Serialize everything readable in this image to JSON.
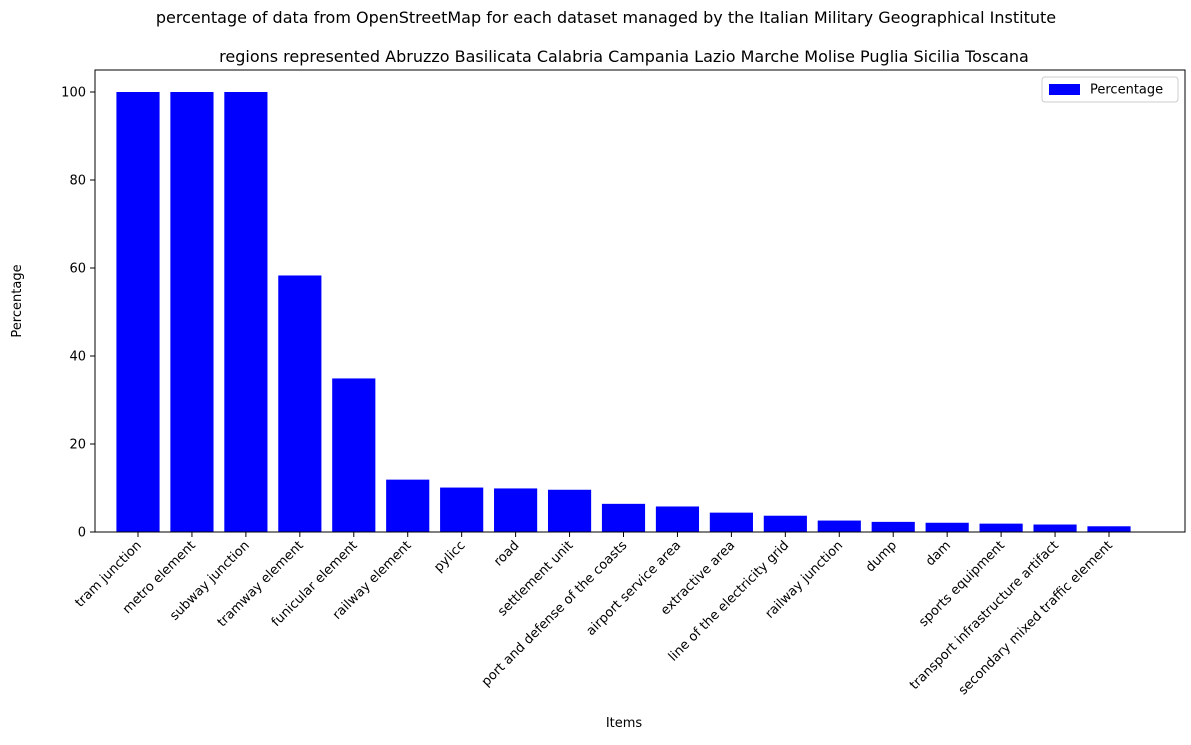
{
  "chart_data": {
    "type": "bar",
    "suptitle": "percentage of data from OpenStreetMap for each dataset managed by the Italian Military Geographical Institute",
    "title": "regions represented Abruzzo Basilicata Calabria Campania Lazio Marche Molise Puglia Sicilia Toscana",
    "xlabel": "Items",
    "ylabel": "Percentage",
    "ylim": [
      0,
      105
    ],
    "yticks": [
      0,
      20,
      40,
      60,
      80,
      100
    ],
    "legend": {
      "label": "Percentage",
      "placement": "top-right"
    },
    "bar_color": "#0000ff",
    "grid": false,
    "categories": [
      "tram junction",
      "metro element",
      "subway junction",
      "tramway element",
      "funicular element",
      "railway element",
      "pylicc",
      "road",
      "settlement unit",
      "port and defense of the coasts",
      "airport service area",
      "extractive area",
      "line of the electricity grid",
      "railway junction",
      "dump",
      "dam",
      "sports equipment",
      "transport infrastructure artifact",
      "secondary mixed traffic element"
    ],
    "values": [
      100,
      100,
      100,
      58.3,
      34.9,
      11.9,
      10.1,
      9.9,
      9.6,
      6.4,
      5.8,
      4.4,
      3.7,
      2.6,
      2.3,
      2.1,
      1.9,
      1.7,
      1.3
    ]
  }
}
